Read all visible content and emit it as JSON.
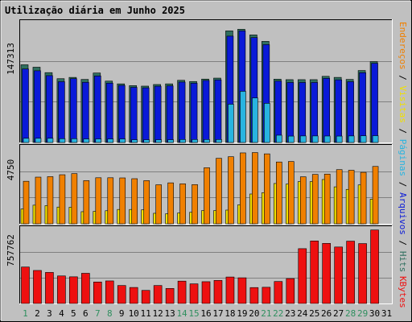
{
  "chart_data": {
    "type": "bar",
    "title": "Utilização diária em Junho 2025",
    "categories": [
      "1",
      "2",
      "3",
      "4",
      "5",
      "6",
      "7",
      "8",
      "9",
      "10",
      "11",
      "12",
      "13",
      "14",
      "15",
      "16",
      "17",
      "18",
      "19",
      "20",
      "21",
      "22",
      "23",
      "24",
      "25",
      "26",
      "27",
      "28",
      "29",
      "30",
      "31"
    ],
    "weekend_days": [
      "1",
      "7",
      "8",
      "14",
      "15",
      "21",
      "22",
      "28",
      "29"
    ],
    "grid": true,
    "colors": {
      "background": "#c0c0c0",
      "panel": "#c0c0c0",
      "gridline": "#808080",
      "title": "#0000c0",
      "day_default": "#000000",
      "day_weekend": "#2f8f5f",
      "hits": "#2f6f5f",
      "files": "#0a1ad8",
      "pages": "#28b4e0",
      "visits": "#f0e000",
      "sites": "#f08000",
      "kbytes": "#ee1010"
    },
    "panels": [
      {
        "id": "panel1",
        "max_label": "147313",
        "ymax": 147313,
        "series": [
          {
            "name": "Hits",
            "values": [
              96100,
              93100,
              86400,
              78900,
              80500,
              78000,
              85900,
              75900,
              72500,
              70300,
              69700,
              71700,
              72500,
              76900,
              75400,
              78400,
              79600,
              138000,
              140000,
              133000,
              125000,
              78300,
              77700,
              77700,
              77700,
              81800,
              80500,
              78000,
              89000,
              100000,
              0
            ]
          },
          {
            "name": "Arquivos",
            "values": [
              90900,
              88700,
              82700,
              75200,
              78900,
              74400,
              82300,
              73400,
              70600,
              68200,
              67600,
              69600,
              70100,
              74700,
              73300,
              76700,
              77400,
              131500,
              138000,
              129700,
              121000,
              75900,
              74200,
              74200,
              74200,
              79300,
              77500,
              75200,
              86300,
              97900,
              0
            ]
          },
          {
            "name": "Páginas",
            "values": [
              5200,
              5200,
              5200,
              4700,
              4700,
              4400,
              4400,
              4400,
              4400,
              3400,
              3400,
              3400,
              3400,
              3700,
              3700,
              3700,
              3700,
              47300,
              63300,
              55100,
              48400,
              9000,
              7900,
              8100,
              8100,
              8000,
              7900,
              8100,
              8300,
              8400,
              0
            ]
          }
        ]
      },
      {
        "id": "panel2",
        "max_label": "4750",
        "ymax": 4750,
        "series": [
          {
            "name": "Visitas",
            "values": [
              930,
              1170,
              1140,
              1050,
              1040,
              760,
              780,
              820,
              900,
              900,
              880,
              660,
              630,
              680,
              720,
              830,
              830,
              860,
              1190,
              1870,
              1950,
              2530,
              2490,
              2650,
              2650,
              2780,
              2320,
              2160,
              2440,
              1550,
              0
            ]
          },
          {
            "name": "Endereços",
            "values": [
              2670,
              2930,
              2960,
              3080,
              3150,
              2710,
              2890,
              2890,
              2880,
              2830,
              2710,
              2450,
              2570,
              2510,
              2460,
              3520,
              4110,
              4210,
              4450,
              4470,
              4390,
              3880,
              3910,
              2950,
              3100,
              3120,
              3400,
              3360,
              3230,
              3600,
              0
            ]
          }
        ]
      },
      {
        "id": "panel3",
        "max_label": "757762",
        "ymax": 757762,
        "series": [
          {
            "name": "KBytes",
            "values": [
              373000,
              338000,
              318000,
              282000,
              273000,
              309000,
              220000,
              231000,
              184000,
              164000,
              134000,
              184000,
              154000,
              229000,
              201000,
              223000,
              236000,
              271000,
              263000,
              163000,
              166000,
              225000,
              255000,
              561000,
              640000,
              615000,
              578000,
              638000,
              613000,
              752000,
              0
            ]
          }
        ]
      }
    ],
    "legend": {
      "panel1": [
        "Hits",
        "/",
        "Arquivos",
        "/",
        "Páginas",
        "/",
        "Visitas",
        "/",
        "Endereços"
      ],
      "panel3": [
        "KBytes"
      ]
    }
  }
}
